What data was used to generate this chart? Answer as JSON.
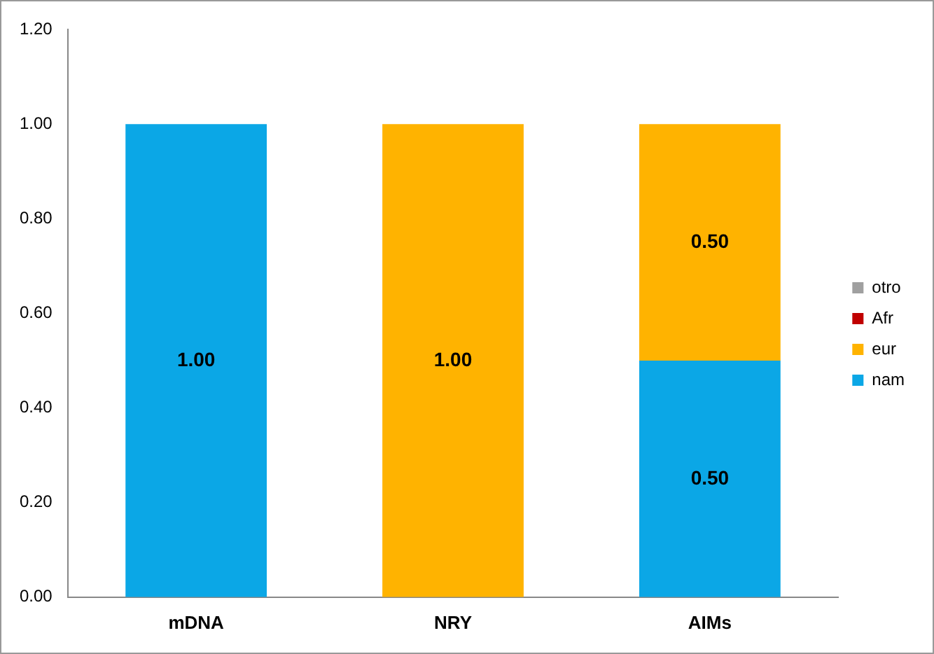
{
  "chart_data": {
    "type": "bar",
    "stacked": true,
    "categories": [
      "mDNA",
      "NRY",
      "AIMs"
    ],
    "series": [
      {
        "name": "nam",
        "color": "#0ba7e6",
        "values": [
          1.0,
          0,
          0.5
        ],
        "value_labels": [
          "1.00",
          null,
          "0.50"
        ]
      },
      {
        "name": "eur",
        "color": "#ffb300",
        "values": [
          0,
          1.0,
          0.5
        ],
        "value_labels": [
          null,
          "1.00",
          "0.50"
        ]
      },
      {
        "name": "Afr",
        "color": "#c00000",
        "values": [
          0,
          0,
          0
        ],
        "value_labels": [
          null,
          null,
          null
        ]
      },
      {
        "name": "otro",
        "color": "#a0a0a0",
        "values": [
          0,
          0,
          0
        ],
        "value_labels": [
          null,
          null,
          null
        ]
      }
    ],
    "ylim": [
      0,
      1.2
    ],
    "yticks": [
      {
        "value": 0,
        "label": "0.00"
      },
      {
        "value": 0.2,
        "label": "0.20"
      },
      {
        "value": 0.4,
        "label": "0.40"
      },
      {
        "value": 0.6,
        "label": "0.60"
      },
      {
        "value": 0.8,
        "label": "0.80"
      },
      {
        "value": 1.0,
        "label": "1.00"
      },
      {
        "value": 1.2,
        "label": "1.20"
      }
    ],
    "grid": false,
    "legend": "right"
  }
}
